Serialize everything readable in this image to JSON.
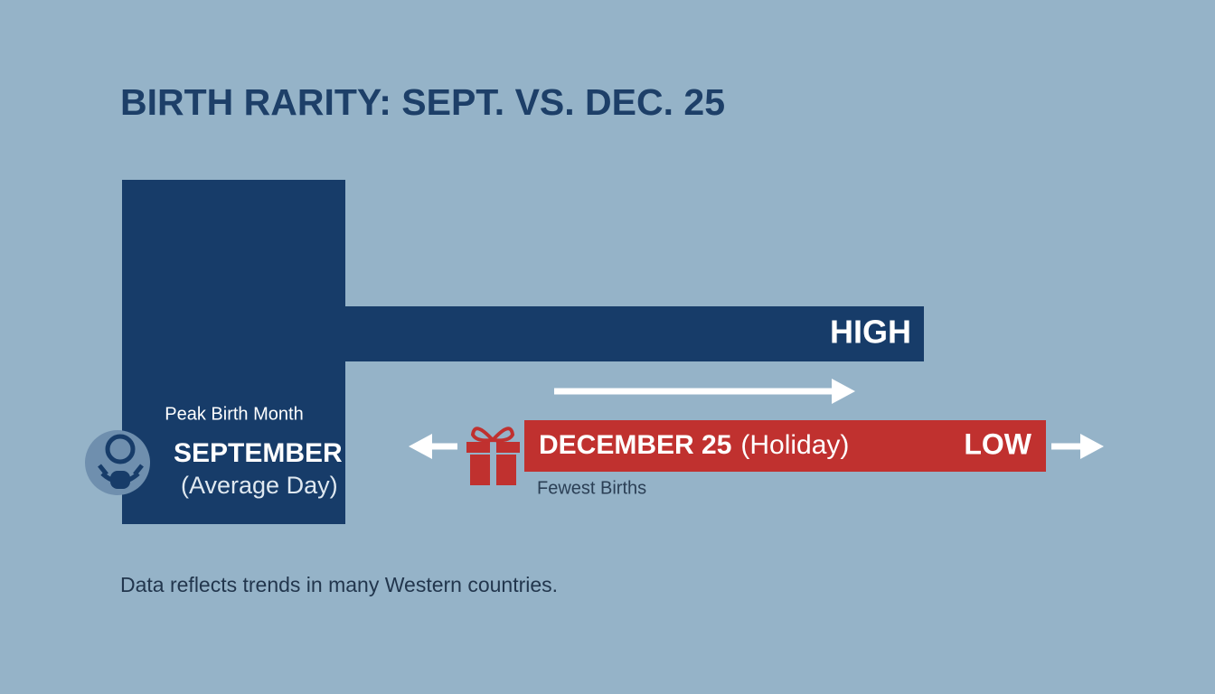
{
  "header": {
    "title": "BIRTH RARITY: SEPT. VS. DEC. 25"
  },
  "high_bar": {
    "label": "HIGH"
  },
  "september": {
    "caption": "Peak Birth Month",
    "label": "SEPTEMBER",
    "note": "(Average Day)"
  },
  "low_bar": {
    "label": "DECEMBER 25",
    "note": "(Holiday)",
    "level": "LOW",
    "caption": "Fewest Births"
  },
  "footer": {
    "note": "Data reflects trends in many Western countries."
  }
}
